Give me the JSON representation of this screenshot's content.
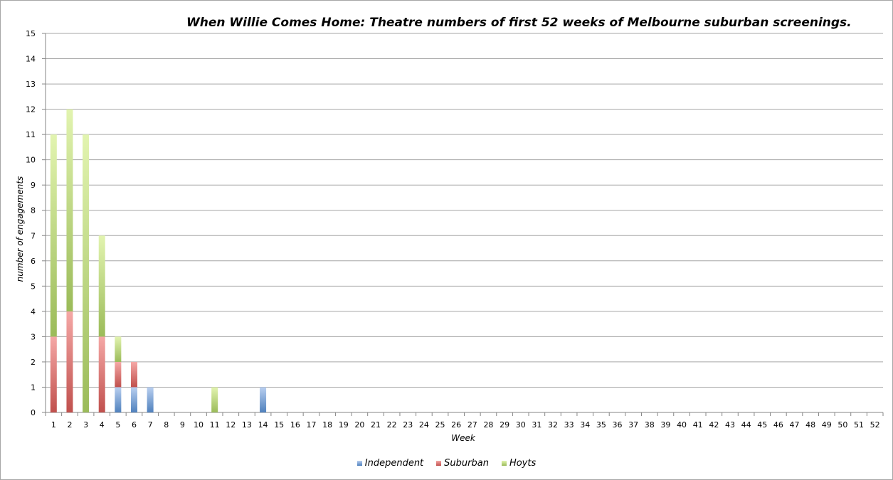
{
  "chart_data": {
    "type": "bar",
    "stacked": true,
    "title": "When Willie Comes Home: Theatre numbers of first 52 weeks of Melbourne suburban screenings.",
    "xlabel": "Week",
    "ylabel": "number of engagements",
    "ylim": [
      0,
      15
    ],
    "grid": true,
    "legend_position": "bottom",
    "categories": [
      "1",
      "2",
      "3",
      "4",
      "5",
      "6",
      "7",
      "8",
      "9",
      "10",
      "11",
      "12",
      "13",
      "14",
      "15",
      "16",
      "17",
      "18",
      "19",
      "20",
      "21",
      "22",
      "23",
      "24",
      "25",
      "26",
      "27",
      "28",
      "29",
      "30",
      "31",
      "32",
      "33",
      "34",
      "35",
      "36",
      "37",
      "38",
      "39",
      "40",
      "41",
      "42",
      "43",
      "44",
      "45",
      "46",
      "47",
      "48",
      "49",
      "50",
      "51",
      "52"
    ],
    "series": [
      {
        "name": "Independent",
        "color": "#4f81bd",
        "values": [
          0,
          0,
          0,
          0,
          1,
          1,
          1,
          0,
          0,
          0,
          0,
          0,
          0,
          1,
          0,
          0,
          0,
          0,
          0,
          0,
          0,
          0,
          0,
          0,
          0,
          0,
          0,
          0,
          0,
          0,
          0,
          0,
          0,
          0,
          0,
          0,
          0,
          0,
          0,
          0,
          0,
          0,
          0,
          0,
          0,
          0,
          0,
          0,
          0,
          0,
          0,
          0
        ]
      },
      {
        "name": "Suburban",
        "color": "#c0504d",
        "values": [
          3,
          4,
          0,
          3,
          1,
          1,
          0,
          0,
          0,
          0,
          0,
          0,
          0,
          0,
          0,
          0,
          0,
          0,
          0,
          0,
          0,
          0,
          0,
          0,
          0,
          0,
          0,
          0,
          0,
          0,
          0,
          0,
          0,
          0,
          0,
          0,
          0,
          0,
          0,
          0,
          0,
          0,
          0,
          0,
          0,
          0,
          0,
          0,
          0,
          0,
          0,
          0
        ]
      },
      {
        "name": "Hoyts",
        "color": "#9bbb59",
        "values": [
          8,
          8,
          11,
          4,
          1,
          0,
          0,
          0,
          0,
          0,
          1,
          0,
          0,
          0,
          0,
          0,
          0,
          0,
          0,
          0,
          0,
          0,
          0,
          0,
          0,
          0,
          0,
          0,
          0,
          0,
          0,
          0,
          0,
          0,
          0,
          0,
          0,
          0,
          0,
          0,
          0,
          0,
          0,
          0,
          0,
          0,
          0,
          0,
          0,
          0,
          0,
          0
        ]
      }
    ]
  }
}
